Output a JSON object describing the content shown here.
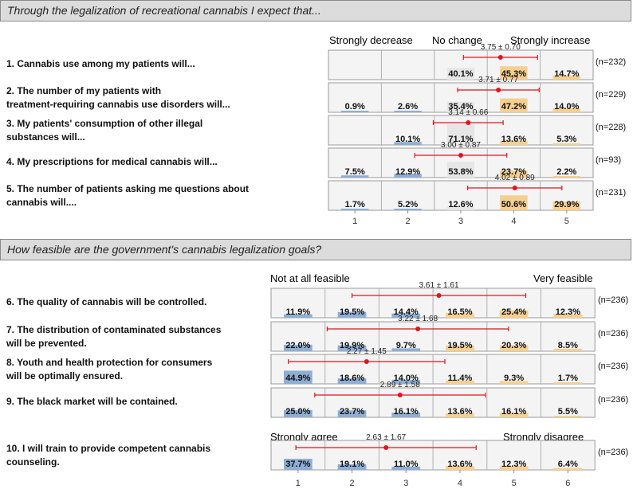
{
  "section1": {
    "header": "Through the legalization of recreational cannabis I expect that...",
    "scale_left": "Strongly decrease",
    "scale_mid": "No change",
    "scale_right": "Strongly increase"
  },
  "section2": {
    "header": "How feasible are the government's cannabis legalization goals?",
    "scale_left": "Not at all feasible",
    "scale_right": "Very feasible",
    "q10_scale_left": "Strongly agree",
    "q10_scale_right": "Strongly disagree"
  },
  "colors": {
    "blue": "#8eaed4",
    "orange": "#f6cf8f",
    "gray": "#e6e6e6",
    "red": "#e0141e"
  },
  "chart_data": [
    {
      "type": "bar",
      "title": "Through the legalization of recreational cannabis I expect that...",
      "categories": [
        "1",
        "2",
        "3",
        "4",
        "5"
      ],
      "items": [
        {
          "label": "1. Cannabis use among my patients will...",
          "values": [
            null,
            null,
            40.1,
            45.3,
            14.7
          ],
          "labels": [
            "",
            "",
            "40.1%",
            "45.3%",
            "14.7%"
          ],
          "mean": 3.75,
          "sd": 0.7,
          "stat": "3.75 ± 0.70",
          "n": "(n=232)"
        },
        {
          "label": "2. The number of my patients with treatment-requiring cannabis use disorders will...",
          "values": [
            0.9,
            2.6,
            35.4,
            47.2,
            14.0
          ],
          "labels": [
            "0.9%",
            "2.6%",
            "35.4%",
            "47.2%",
            "14.0%"
          ],
          "mean": 3.71,
          "sd": 0.77,
          "stat": "3.71 ± 0.77",
          "n": "(n=229)"
        },
        {
          "label": "3. My patients' consumption of other illegal substances  will...",
          "values": [
            null,
            10.1,
            71.1,
            13.6,
            5.3
          ],
          "labels": [
            "",
            "10.1%",
            "71.1%",
            "13.6%",
            "5.3%"
          ],
          "mean": 3.14,
          "sd": 0.66,
          "stat": "3.14 ± 0.66",
          "n": "(n=228)"
        },
        {
          "label": "4. My prescriptions for medical cannabis will...",
          "values": [
            7.5,
            12.9,
            53.8,
            23.7,
            2.2
          ],
          "labels": [
            "7.5%",
            "12.9%",
            "53.8%",
            "23.7%",
            "2.2%"
          ],
          "mean": 3.0,
          "sd": 0.87,
          "stat": "3.00 ± 0.87",
          "n": "(n=93)"
        },
        {
          "label": "5. The number of patients asking me questions about cannabis will....",
          "values": [
            1.7,
            5.2,
            12.6,
            50.6,
            29.9
          ],
          "labels": [
            "1.7%",
            "5.2%",
            "12.6%",
            "50.6%",
            "29.9%"
          ],
          "mean": 4.02,
          "sd": 0.89,
          "stat": "4.02 ± 0.89",
          "n": "(n=231)"
        }
      ]
    },
    {
      "type": "bar",
      "title": "How feasible are the government's cannabis legalization goals?",
      "categories": [
        "1",
        "2",
        "3",
        "4",
        "5",
        "6"
      ],
      "items": [
        {
          "label": "6. The quality of cannabis will be controlled.",
          "values": [
            11.9,
            19.5,
            14.4,
            16.5,
            25.4,
            12.3
          ],
          "labels": [
            "11.9%",
            "19.5%",
            "14.4%",
            "16.5%",
            "25.4%",
            "12.3%"
          ],
          "mean": 3.61,
          "sd": 1.61,
          "stat": "3.61 ± 1.61",
          "n": "(n=236)"
        },
        {
          "label": "7. The distribution of contaminated substances will be prevented.",
          "values": [
            22.0,
            19.9,
            9.7,
            19.5,
            20.3,
            8.5
          ],
          "labels": [
            "22.0%",
            "19.9%",
            "9.7%",
            "19.5%",
            "20.3%",
            "8.5%"
          ],
          "mean": 3.22,
          "sd": 1.68,
          "stat": "3.22 ± 1.68",
          "n": "(n=236)"
        },
        {
          "label": "8. Youth and health protection for consumers will be optimally ensured.",
          "values": [
            44.9,
            18.6,
            14.0,
            11.4,
            9.3,
            1.7
          ],
          "labels": [
            "44.9%",
            "18.6%",
            "14.0%",
            "11.4%",
            "9.3%",
            "1.7%"
          ],
          "mean": 2.27,
          "sd": 1.45,
          "stat": "2.27 ± 1.45",
          "n": "(n=236)"
        },
        {
          "label": "9. The black market will be contained.",
          "values": [
            25.0,
            23.7,
            16.1,
            13.6,
            16.1,
            5.5
          ],
          "labels": [
            "25.0%",
            "23.7%",
            "16.1%",
            "13.6%",
            "16.1%",
            "5.5%"
          ],
          "mean": 2.89,
          "sd": 1.58,
          "stat": "2.89 ± 1.58",
          "n": "(n=236)"
        },
        {
          "label": "10. I will train to provide competent cannabis counseling.",
          "values": [
            37.7,
            19.1,
            11.0,
            13.6,
            12.3,
            6.4
          ],
          "labels": [
            "37.7%",
            "19.1%",
            "11.0%",
            "13.6%",
            "12.3%",
            "6.4%"
          ],
          "mean": 2.63,
          "sd": 1.67,
          "stat": "2.63 ± 1.67",
          "n": "(n=236)"
        }
      ]
    }
  ]
}
